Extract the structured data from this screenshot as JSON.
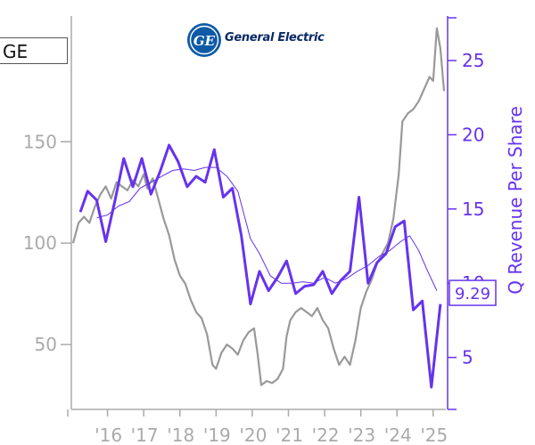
{
  "ticker": "GE",
  "logo": {
    "name": "General Electric",
    "monogram": "GE",
    "brand_color": "#0e5aa7"
  },
  "colors": {
    "price": "#999999",
    "revenue": "#6633ee",
    "avg": "#6633ee",
    "axis": "#aaaaaa"
  },
  "chart_data": {
    "type": "line",
    "xlabel": "",
    "ylabel_left": "",
    "ylabel_right": "Q Revenue Per Share",
    "x_ticks": [
      "'16",
      "'17",
      "'18",
      "'19",
      "'20",
      "'21",
      "'22",
      "'23",
      "'24",
      "'25"
    ],
    "left_axis": {
      "ticks": [
        50,
        100,
        150
      ],
      "range": [
        18,
        212
      ]
    },
    "right_axis": {
      "ticks": [
        5,
        10,
        15,
        20,
        25
      ],
      "range": [
        1.5,
        28
      ]
    },
    "last_value_label": "9.29",
    "series": [
      {
        "axis": "left",
        "points": [
          [
            2015.05,
            100
          ],
          [
            2015.2,
            110
          ],
          [
            2015.35,
            113
          ],
          [
            2015.5,
            110
          ],
          [
            2015.65,
            118
          ],
          [
            2015.8,
            124
          ],
          [
            2015.95,
            128
          ],
          [
            2016.1,
            122
          ],
          [
            2016.25,
            130
          ],
          [
            2016.4,
            128
          ],
          [
            2016.55,
            126
          ],
          [
            2016.7,
            131
          ],
          [
            2016.85,
            128
          ],
          [
            2017.0,
            134
          ],
          [
            2017.1,
            127
          ],
          [
            2017.25,
            132
          ],
          [
            2017.4,
            122
          ],
          [
            2017.55,
            112
          ],
          [
            2017.7,
            104
          ],
          [
            2017.85,
            92
          ],
          [
            2018.0,
            84
          ],
          [
            2018.15,
            80
          ],
          [
            2018.3,
            72
          ],
          [
            2018.45,
            66
          ],
          [
            2018.6,
            63
          ],
          [
            2018.75,
            55
          ],
          [
            2018.9,
            40
          ],
          [
            2019.0,
            38
          ],
          [
            2019.15,
            46
          ],
          [
            2019.3,
            50
          ],
          [
            2019.45,
            48
          ],
          [
            2019.6,
            45
          ],
          [
            2019.75,
            52
          ],
          [
            2019.9,
            56
          ],
          [
            2020.05,
            58
          ],
          [
            2020.15,
            45
          ],
          [
            2020.25,
            30
          ],
          [
            2020.4,
            32
          ],
          [
            2020.55,
            31
          ],
          [
            2020.7,
            33
          ],
          [
            2020.85,
            38
          ],
          [
            2020.95,
            54
          ],
          [
            2021.05,
            62
          ],
          [
            2021.2,
            66
          ],
          [
            2021.35,
            68
          ],
          [
            2021.5,
            66
          ],
          [
            2021.65,
            64
          ],
          [
            2021.8,
            68
          ],
          [
            2021.95,
            62
          ],
          [
            2022.1,
            58
          ],
          [
            2022.25,
            48
          ],
          [
            2022.4,
            40
          ],
          [
            2022.55,
            44
          ],
          [
            2022.7,
            40
          ],
          [
            2022.85,
            52
          ],
          [
            2023.0,
            68
          ],
          [
            2023.15,
            76
          ],
          [
            2023.3,
            82
          ],
          [
            2023.45,
            90
          ],
          [
            2023.6,
            95
          ],
          [
            2023.75,
            100
          ],
          [
            2023.9,
            112
          ],
          [
            2024.05,
            134
          ],
          [
            2024.15,
            160
          ],
          [
            2024.3,
            164
          ],
          [
            2024.45,
            166
          ],
          [
            2024.6,
            170
          ],
          [
            2024.75,
            176
          ],
          [
            2024.9,
            182
          ],
          [
            2025.0,
            180
          ],
          [
            2025.1,
            206
          ],
          [
            2025.2,
            196
          ],
          [
            2025.3,
            175
          ]
        ]
      },
      {
        "axis": "right",
        "points": [
          [
            2015.25,
            14.8
          ],
          [
            2015.45,
            16.2
          ],
          [
            2015.7,
            15.6
          ],
          [
            2015.95,
            12.8
          ],
          [
            2016.2,
            15.5
          ],
          [
            2016.45,
            18.4
          ],
          [
            2016.7,
            16.5
          ],
          [
            2016.95,
            18.4
          ],
          [
            2017.2,
            16.0
          ],
          [
            2017.45,
            17.5
          ],
          [
            2017.7,
            19.3
          ],
          [
            2017.95,
            18.2
          ],
          [
            2018.2,
            16.5
          ],
          [
            2018.45,
            17.2
          ],
          [
            2018.7,
            16.8
          ],
          [
            2018.95,
            19.0
          ],
          [
            2019.2,
            15.8
          ],
          [
            2019.45,
            16.4
          ],
          [
            2019.7,
            13.2
          ],
          [
            2019.95,
            8.6
          ],
          [
            2020.2,
            10.8
          ],
          [
            2020.45,
            9.5
          ],
          [
            2020.7,
            10.4
          ],
          [
            2020.95,
            11.5
          ],
          [
            2021.2,
            9.3
          ],
          [
            2021.45,
            9.8
          ],
          [
            2021.7,
            9.9
          ],
          [
            2021.95,
            10.8
          ],
          [
            2022.2,
            9.3
          ],
          [
            2022.45,
            10.2
          ],
          [
            2022.7,
            10.8
          ],
          [
            2022.95,
            15.8
          ],
          [
            2023.2,
            10.0
          ],
          [
            2023.45,
            11.4
          ],
          [
            2023.7,
            12.0
          ],
          [
            2023.95,
            13.8
          ],
          [
            2024.2,
            14.2
          ],
          [
            2024.45,
            8.2
          ],
          [
            2024.7,
            8.8
          ],
          [
            2024.95,
            3.0
          ],
          [
            2025.2,
            8.6
          ]
        ]
      },
      {
        "axis": "right",
        "points": [
          [
            2015.7,
            14.4
          ],
          [
            2016.0,
            14.6
          ],
          [
            2016.3,
            15.2
          ],
          [
            2016.6,
            15.5
          ],
          [
            2016.9,
            16.4
          ],
          [
            2017.2,
            16.8
          ],
          [
            2017.5,
            17.2
          ],
          [
            2017.8,
            17.6
          ],
          [
            2018.1,
            17.7
          ],
          [
            2018.4,
            17.6
          ],
          [
            2018.7,
            17.8
          ],
          [
            2019.0,
            17.8
          ],
          [
            2019.3,
            17.2
          ],
          [
            2019.6,
            16.2
          ],
          [
            2019.95,
            13.0
          ],
          [
            2020.2,
            12.0
          ],
          [
            2020.5,
            10.5
          ],
          [
            2020.8,
            10.0
          ],
          [
            2021.1,
            10.0
          ],
          [
            2021.4,
            10.1
          ],
          [
            2021.7,
            10.0
          ],
          [
            2022.0,
            10.4
          ],
          [
            2022.3,
            10.0
          ],
          [
            2022.6,
            10.3
          ],
          [
            2022.9,
            10.8
          ],
          [
            2023.2,
            11.2
          ],
          [
            2023.5,
            11.8
          ],
          [
            2023.8,
            12.2
          ],
          [
            2024.1,
            12.8
          ],
          [
            2024.35,
            13.2
          ],
          [
            2024.6,
            12.2
          ],
          [
            2024.85,
            10.8
          ],
          [
            2025.1,
            9.5
          ]
        ]
      }
    ]
  }
}
